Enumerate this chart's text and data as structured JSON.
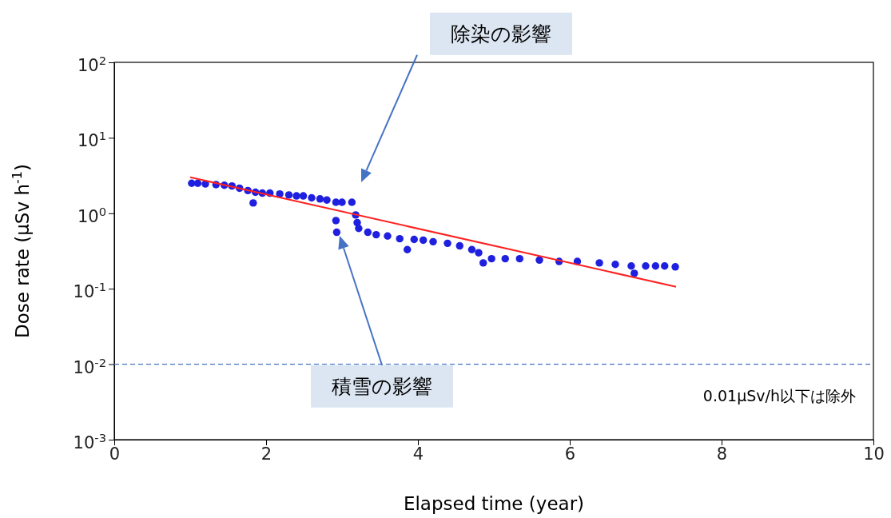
{
  "chart_data": {
    "type": "scatter",
    "xlabel": "Elapsed time (year)",
    "ylabel": "Dose rate (μSv h$^{-1}$)",
    "log": "y",
    "grid": false,
    "xlim": [
      0,
      10
    ],
    "xticks": [
      0,
      2,
      4,
      6,
      8,
      10
    ],
    "ylim": [
      0.001,
      100
    ],
    "yticks": [
      {
        "value": 0.001,
        "label": "10$^{-3}$"
      },
      {
        "value": 0.01,
        "label": "10$^{-2}$"
      },
      {
        "value": 0.1,
        "label": "10$^{-1}$"
      },
      {
        "value": 1,
        "label": "10$^{0}$"
      },
      {
        "value": 10,
        "label": "10$^{1}$"
      },
      {
        "value": 100,
        "label": "10$^{2}$"
      }
    ],
    "series": [
      {
        "marker": "circle",
        "color": "#1f1fe0",
        "x": [
          1.02,
          1.1,
          1.2,
          1.34,
          1.45,
          1.55,
          1.65,
          1.76,
          1.83,
          1.86,
          1.95,
          2.05,
          2.18,
          2.3,
          2.4,
          2.49,
          2.6,
          2.71,
          2.8,
          2.92,
          2.92,
          2.93,
          3.0,
          3.13,
          3.18,
          3.2,
          3.22,
          3.34,
          3.45,
          3.6,
          3.76,
          3.86,
          3.95,
          4.07,
          4.2,
          4.39,
          4.55,
          4.71,
          4.8,
          4.86,
          4.97,
          5.15,
          5.34,
          5.6,
          5.86,
          6.1,
          6.39,
          6.6,
          6.81,
          6.85,
          7.0,
          7.13,
          7.25,
          7.39
        ],
        "values": [
          2.5,
          2.5,
          2.45,
          2.4,
          2.35,
          2.3,
          2.15,
          2.0,
          1.37,
          1.9,
          1.85,
          1.85,
          1.8,
          1.75,
          1.7,
          1.7,
          1.6,
          1.55,
          1.5,
          1.4,
          0.8,
          0.56,
          1.4,
          1.4,
          0.95,
          0.75,
          0.63,
          0.56,
          0.52,
          0.5,
          0.46,
          0.33,
          0.45,
          0.44,
          0.42,
          0.4,
          0.37,
          0.33,
          0.3,
          0.22,
          0.25,
          0.25,
          0.25,
          0.24,
          0.23,
          0.23,
          0.22,
          0.21,
          0.2,
          0.16,
          0.2,
          0.2,
          0.2,
          0.195
        ]
      },
      {
        "type": "line",
        "color": "#ff2020",
        "x": [
          1.0,
          7.4
        ],
        "values": [
          3.0,
          0.106
        ]
      }
    ],
    "ref_lines": [
      {
        "axis": "y",
        "value": 0.01,
        "label": "0.01μSv/h以下は除外",
        "color": "#4472c4",
        "line_style": "dashed"
      }
    ],
    "annotations": [
      "除染の影響",
      "積雪の影響"
    ]
  }
}
